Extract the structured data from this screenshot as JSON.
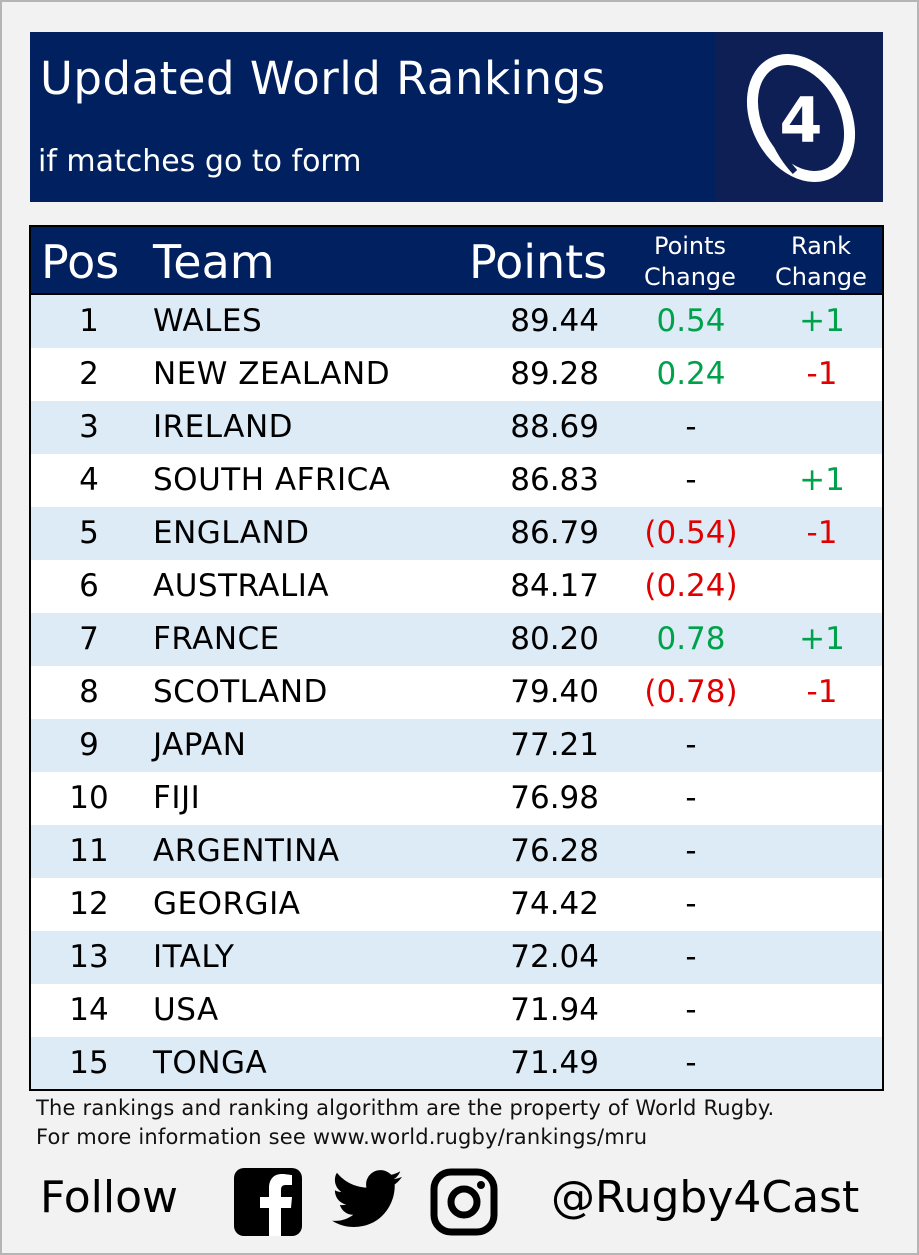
{
  "header": {
    "title": "Updated World Rankings",
    "subtitle": "if matches go to form",
    "logo_icon": "rugby4cast-logo",
    "logo_text": "4"
  },
  "table": {
    "columns": {
      "pos": "Pos",
      "team": "Team",
      "points": "Points",
      "points_change_line1": "Points",
      "points_change_line2": "Change",
      "rank_change_line1": "Rank",
      "rank_change_line2": "Change"
    },
    "rows": [
      {
        "pos": "1",
        "team": "WALES",
        "points": "89.44",
        "points_change": "0.54",
        "pc_color": "green",
        "rank_change": "+1",
        "rc_color": "green"
      },
      {
        "pos": "2",
        "team": "NEW ZEALAND",
        "points": "89.28",
        "points_change": "0.24",
        "pc_color": "green",
        "rank_change": "-1",
        "rc_color": "red"
      },
      {
        "pos": "3",
        "team": "IRELAND",
        "points": "88.69",
        "points_change": "-",
        "pc_color": "black",
        "rank_change": "",
        "rc_color": "black"
      },
      {
        "pos": "4",
        "team": "SOUTH AFRICA",
        "points": "86.83",
        "points_change": "-",
        "pc_color": "black",
        "rank_change": "+1",
        "rc_color": "green"
      },
      {
        "pos": "5",
        "team": "ENGLAND",
        "points": "86.79",
        "points_change": "(0.54)",
        "pc_color": "red",
        "rank_change": "-1",
        "rc_color": "red"
      },
      {
        "pos": "6",
        "team": "AUSTRALIA",
        "points": "84.17",
        "points_change": "(0.24)",
        "pc_color": "red",
        "rank_change": "",
        "rc_color": "black"
      },
      {
        "pos": "7",
        "team": "FRANCE",
        "points": "80.20",
        "points_change": "0.78",
        "pc_color": "green",
        "rank_change": "+1",
        "rc_color": "green"
      },
      {
        "pos": "8",
        "team": "SCOTLAND",
        "points": "79.40",
        "points_change": "(0.78)",
        "pc_color": "red",
        "rank_change": "-1",
        "rc_color": "red"
      },
      {
        "pos": "9",
        "team": "JAPAN",
        "points": "77.21",
        "points_change": "-",
        "pc_color": "black",
        "rank_change": "",
        "rc_color": "black"
      },
      {
        "pos": "10",
        "team": "FIJI",
        "points": "76.98",
        "points_change": "-",
        "pc_color": "black",
        "rank_change": "",
        "rc_color": "black"
      },
      {
        "pos": "11",
        "team": "ARGENTINA",
        "points": "76.28",
        "points_change": "-",
        "pc_color": "black",
        "rank_change": "",
        "rc_color": "black"
      },
      {
        "pos": "12",
        "team": "GEORGIA",
        "points": "74.42",
        "points_change": "-",
        "pc_color": "black",
        "rank_change": "",
        "rc_color": "black"
      },
      {
        "pos": "13",
        "team": "ITALY",
        "points": "72.04",
        "points_change": "-",
        "pc_color": "black",
        "rank_change": "",
        "rc_color": "black"
      },
      {
        "pos": "14",
        "team": "USA",
        "points": "71.94",
        "points_change": "-",
        "pc_color": "black",
        "rank_change": "",
        "rc_color": "black"
      },
      {
        "pos": "15",
        "team": "TONGA",
        "points": "71.49",
        "points_change": "-",
        "pc_color": "black",
        "rank_change": "",
        "rc_color": "black"
      }
    ]
  },
  "footer": {
    "note_line1": "The rankings and ranking algorithm are the property of World Rugby.",
    "note_line2": "For more information see www.world.rugby/rankings/mru",
    "follow_label": "Follow",
    "handle": "@Rugby4Cast",
    "social_icons": [
      "facebook-icon",
      "twitter-icon",
      "instagram-icon"
    ]
  },
  "colors": {
    "navy": "#002060",
    "row_alt": "#ddebf7",
    "positive": "#00a14b",
    "negative": "#e00000"
  }
}
